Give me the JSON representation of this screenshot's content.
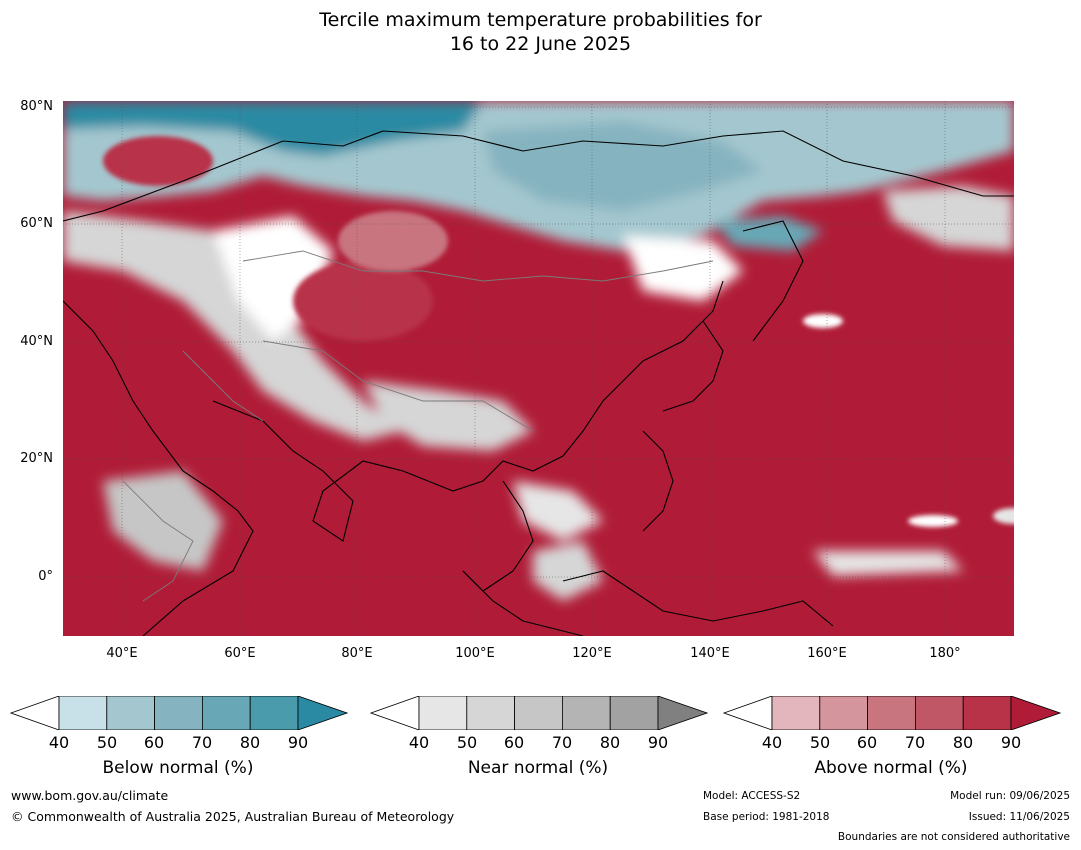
{
  "title_line1": "Tercile maximum temperature probabilities for",
  "title_line2": "16 to 22 June 2025",
  "map": {
    "lat_labels": [
      "80°N",
      "60°N",
      "40°N",
      "20°N",
      "0°"
    ],
    "lon_labels": [
      "40°E",
      "60°E",
      "80°E",
      "100°E",
      "120°E",
      "140°E",
      "160°E",
      "180°"
    ]
  },
  "colorbars": [
    {
      "title": "Below normal (%)",
      "ticks": [
        "40",
        "50",
        "60",
        "70",
        "80",
        "90"
      ],
      "colors": [
        "#ffffff",
        "#c8e0e7",
        "#a4c7cf",
        "#86b3c0",
        "#68a8b6",
        "#4a9cad",
        "#2a8aa3"
      ]
    },
    {
      "title": "Near normal (%)",
      "ticks": [
        "40",
        "50",
        "60",
        "70",
        "80",
        "90"
      ],
      "colors": [
        "#ffffff",
        "#e6e6e6",
        "#d6d6d6",
        "#c6c6c6",
        "#b4b4b4",
        "#a2a2a2",
        "#808080"
      ]
    },
    {
      "title": "Above normal (%)",
      "ticks": [
        "40",
        "50",
        "60",
        "70",
        "80",
        "90"
      ],
      "colors": [
        "#ffffff",
        "#e3b6bd",
        "#d4959d",
        "#c87580",
        "#c05767",
        "#b83348",
        "#b01c37"
      ]
    }
  ],
  "footer": {
    "url": "www.bom.gov.au/climate",
    "copyright": "© Commonwealth of Australia 2025, Australian Bureau of Meteorology",
    "model": "Model: ACCESS-S2",
    "base_period": "Base period: 1981-2018",
    "model_run": "Model run: 09/06/2025",
    "issued": "Issued: 11/06/2025",
    "disclaimer": "Boundaries are not considered authoritative"
  }
}
